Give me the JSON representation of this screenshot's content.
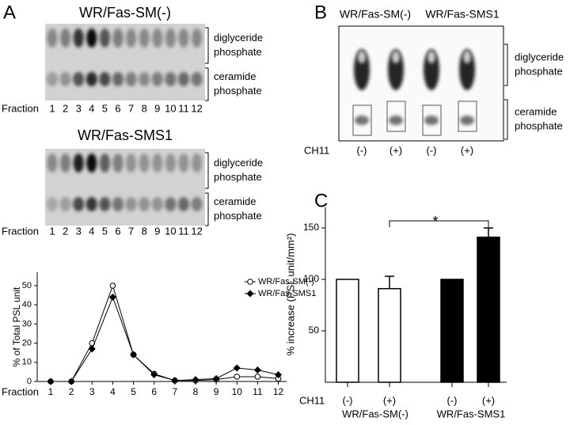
{
  "panel_labels": [
    "A",
    "B",
    "C"
  ],
  "blots_a": [
    {
      "title": "WR/Fas-SM(-)",
      "fraction_label": "Fraction",
      "lanes": [
        "1",
        "2",
        "3",
        "4",
        "5",
        "6",
        "7",
        "8",
        "9",
        "10",
        "11",
        "12"
      ],
      "bands": [
        [
          "diglyceride",
          "phosphate"
        ],
        [
          "ceramide",
          "phosphate"
        ]
      ]
    },
    {
      "title": "WR/Fas-SMS1",
      "fraction_label": "Fraction",
      "lanes": [
        "1",
        "2",
        "3",
        "4",
        "5",
        "6",
        "7",
        "8",
        "9",
        "10",
        "11",
        "12"
      ],
      "bands": [
        [
          "diglyceride",
          "phosphate"
        ],
        [
          "ceramide",
          "phosphate"
        ]
      ]
    }
  ],
  "blot_b": {
    "columns": [
      "WR/Fas-SM(-)",
      "WR/Fas-SMS1"
    ],
    "bands": [
      [
        "diglyceride",
        "phosphate"
      ],
      [
        "ceramide",
        "phosphate"
      ]
    ],
    "row_label": "CH11",
    "lanes": [
      "(-)",
      "(+)",
      "(-)",
      "(+)"
    ]
  },
  "chart_data": [
    {
      "type": "line",
      "ylabel": "% of Total PSL unit",
      "xlabel": "Fraction",
      "x": [
        1,
        2,
        3,
        4,
        5,
        6,
        7,
        8,
        9,
        10,
        11,
        12
      ],
      "series": [
        {
          "name": "WR/Fas-SM(-)",
          "color": "#000000",
          "marker": "circle-open",
          "values": [
            0,
            0,
            20,
            50,
            14,
            4,
            0.5,
            0.5,
            1,
            2.5,
            2.5,
            1.5
          ]
        },
        {
          "name": "WR/Fas-SMS1",
          "color": "#000000",
          "marker": "diamond",
          "values": [
            0,
            0,
            17,
            44,
            14,
            3.5,
            0.5,
            1,
            1.5,
            7,
            6,
            3.5
          ]
        }
      ],
      "xlim": [
        0.35,
        12.4
      ],
      "xticks": [
        1,
        2,
        3,
        4,
        5,
        6,
        7,
        8,
        9,
        10,
        11,
        12
      ],
      "ylim": [
        0,
        57
      ],
      "yticks": [
        0,
        10,
        20,
        30,
        40,
        50
      ]
    },
    {
      "type": "bar",
      "ylabel": "% increase (PSL unit/mm²)",
      "xlabel": "CH11",
      "categories": [
        "(-)",
        "(+)",
        "(-)",
        "(+)"
      ],
      "values": [
        100,
        91,
        100,
        141
      ],
      "errors": [
        null,
        12,
        null,
        9
      ],
      "colors": [
        "#ffffff",
        "#ffffff",
        "#000000",
        "#000000"
      ],
      "groups": [
        "WR/Fas-SM(-)",
        "WR/Fas-SMS1"
      ],
      "annotation": "*",
      "ylim": [
        0,
        170
      ],
      "yticks": [
        50,
        100,
        150
      ]
    }
  ]
}
